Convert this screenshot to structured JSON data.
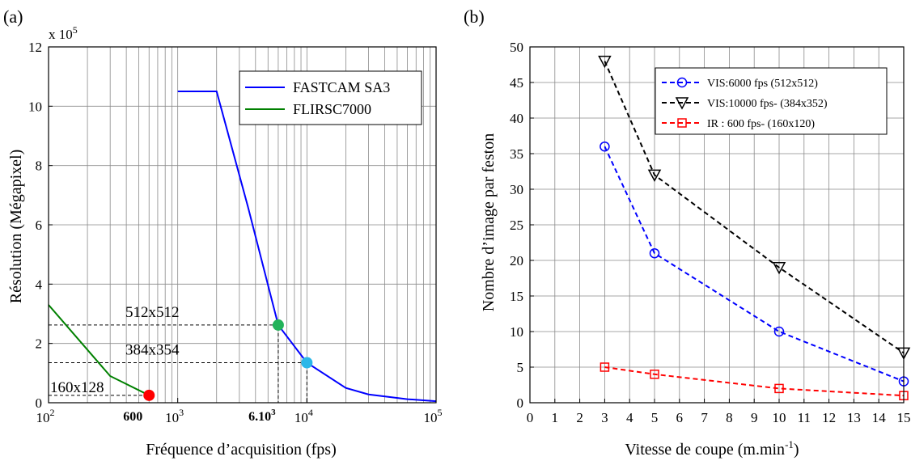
{
  "chart_data": [
    {
      "panel_label": "(a)",
      "type": "line",
      "xscale": "log",
      "xlim": [
        100,
        100000
      ],
      "ylim": [
        0,
        12
      ],
      "y_multiplier": "x 10",
      "y_multiplier_exp": "5",
      "xlabel": "Fréquence d’acquisition (fps)",
      "ylabel": "Résolution (Mégapixel)",
      "x_ticks": [
        {
          "value": 100,
          "base": "10",
          "exp": "2"
        },
        {
          "value": 1000,
          "base": "10",
          "exp": "3"
        },
        {
          "value": 10000,
          "base": "10",
          "exp": "4"
        },
        {
          "value": 100000,
          "base": "10",
          "exp": "5"
        }
      ],
      "y_ticks": [
        "0",
        "2",
        "4",
        "6",
        "8",
        "10",
        "12"
      ],
      "grid": true,
      "legend_position": "top-right",
      "series": [
        {
          "name": "FASTCAM SA3",
          "color": "#0000ff",
          "x": [
            1000,
            2000,
            3500,
            6000,
            10000,
            20000,
            30000,
            60000,
            100000
          ],
          "y": [
            10.5,
            10.5,
            6.6,
            2.62,
            1.35,
            0.5,
            0.28,
            0.12,
            0.05
          ]
        },
        {
          "name": "FLIRSC7000",
          "color": "#008000",
          "x": [
            100,
            300,
            600
          ],
          "y": [
            3.3,
            0.9,
            0.25
          ]
        }
      ],
      "markers": [
        {
          "x": 600,
          "y": 0.25,
          "color": "#ff0000"
        },
        {
          "x": 6000,
          "y": 2.62,
          "color": "#22b35a"
        },
        {
          "x": 10000,
          "y": 1.35,
          "color": "#2ab7e8"
        }
      ],
      "reference_lines": [
        {
          "label": "512x512",
          "x": 6000,
          "y": 2.62
        },
        {
          "label": "384x354",
          "x": 10000,
          "y": 1.35
        },
        {
          "label": "160x128",
          "x": 600,
          "y": 0.25
        }
      ],
      "x_annotations": [
        {
          "text": "600",
          "x": 600
        },
        {
          "text": "6.10",
          "sup": "3",
          "x": 6000
        }
      ]
    },
    {
      "panel_label": "(b)",
      "type": "line",
      "xlim": [
        0,
        15
      ],
      "ylim": [
        0,
        50
      ],
      "xlabel": "Vitesse de coupe (m.min",
      "xlabel_sup": "-1",
      "xlabel_end": ")",
      "ylabel": "Nombre d’image par feston",
      "x_ticks": [
        "0",
        "1",
        "2",
        "3",
        "4",
        "5",
        "6",
        "7",
        "8",
        "9",
        "10",
        "11",
        "12",
        "13",
        "14",
        "15"
      ],
      "y_ticks": [
        "0",
        "5",
        "10",
        "15",
        "20",
        "25",
        "30",
        "35",
        "40",
        "45",
        "50"
      ],
      "grid": true,
      "legend_position": "top-right",
      "series": [
        {
          "name": "VIS:6000 fps (512x512)",
          "color": "#0000ff",
          "marker": "circle",
          "x": [
            3,
            5,
            10,
            15
          ],
          "y": [
            36,
            21,
            10,
            3
          ]
        },
        {
          "name": "VIS:10000 fps- (384x352)",
          "color": "#000000",
          "marker": "triangle-down",
          "x": [
            3,
            5,
            10,
            15
          ],
          "y": [
            48,
            32,
            19,
            7
          ]
        },
        {
          "name": "IR : 600 fps- (160x120)",
          "color": "#ff0000",
          "marker": "square",
          "x": [
            3,
            5,
            10,
            15
          ],
          "y": [
            5,
            4,
            2,
            1
          ]
        }
      ]
    }
  ]
}
